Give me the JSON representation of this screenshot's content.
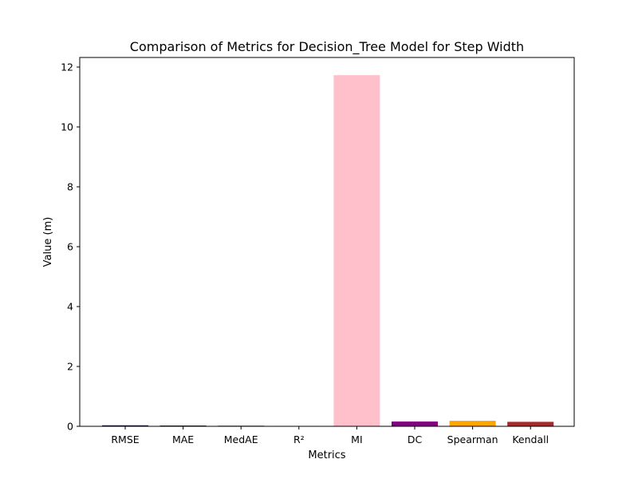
{
  "chart_data": {
    "type": "bar",
    "title": "Comparison of Metrics for Decision_Tree Model for Step Width",
    "xlabel": "Metrics",
    "ylabel": "Value (m)",
    "categories": [
      "RMSE",
      "MAE",
      "MedAE",
      "R²",
      "MI",
      "DC",
      "Spearman",
      "Kendall"
    ],
    "values": [
      0.032,
      0.026,
      0.02,
      0.015,
      11.73,
      0.16,
      0.185,
      0.15
    ],
    "colors": [
      "#000080",
      "#8b0000",
      "#006400",
      "#ffff00",
      "#ffc0cb",
      "#800080",
      "#ffa500",
      "#a52a2a"
    ],
    "ylim": [
      0,
      12.32
    ],
    "yticks": [
      0,
      2,
      4,
      6,
      8,
      10,
      12
    ],
    "grid": false,
    "legend": "none"
  }
}
